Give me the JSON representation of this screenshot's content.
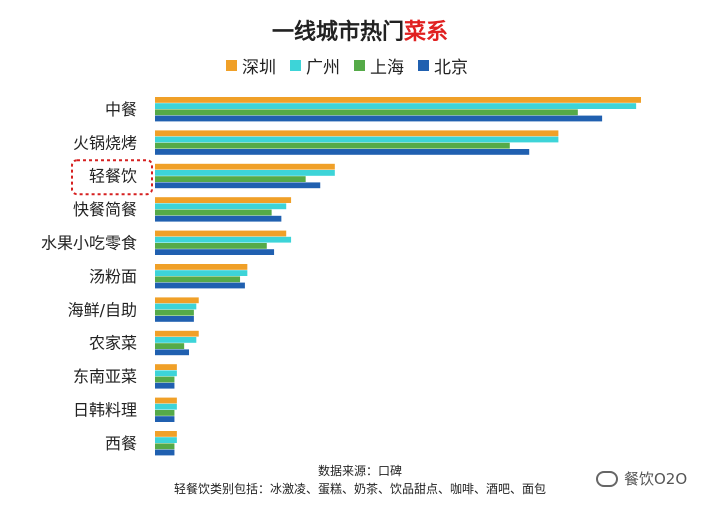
{
  "title": {
    "prefix": "一线城市热门",
    "accent": "菜系"
  },
  "colors": {
    "深圳": "#F0A028",
    "广州": "#3DD4D8",
    "上海": "#55AA48",
    "北京": "#2060B0",
    "highlight_border": "#D62020"
  },
  "chart_data": {
    "type": "bar",
    "orientation": "horizontal",
    "title": "一线城市热门菜系",
    "categories": [
      "中餐",
      "火锅烧烤",
      "轻餐饮",
      "快餐简餐",
      "水果小吃零食",
      "汤粉面",
      "海鲜/自助",
      "农家菜",
      "东南亚菜",
      "日韩料理",
      "西餐"
    ],
    "highlighted_category": "轻餐饮",
    "series": [
      {
        "name": "深圳",
        "values": [
          100,
          83,
          37,
          28,
          27,
          19,
          9,
          9,
          4.5,
          4.5,
          4.5
        ]
      },
      {
        "name": "广州",
        "values": [
          99,
          83,
          37,
          27,
          28,
          19,
          8.5,
          8.5,
          4.5,
          4.5,
          4.5
        ]
      },
      {
        "name": "上海",
        "values": [
          87,
          73,
          31,
          24,
          23,
          17.5,
          8,
          6,
          4,
          4,
          4
        ]
      },
      {
        "name": "北京",
        "values": [
          92,
          77,
          34,
          26,
          24.5,
          18.5,
          8,
          7,
          4,
          4,
          4
        ]
      }
    ],
    "xlim": [
      0,
      100
    ],
    "legend_position": "top",
    "grid": false,
    "axes_visible": false
  },
  "footer": {
    "source": "数据来源：口碑",
    "note": "轻餐饮类别包括：冰激凌、蛋糕、奶茶、饮品甜点、咖啡、酒吧、面包"
  },
  "watermark": {
    "text": "餐饮O2O",
    "icon": "wechat-icon"
  }
}
